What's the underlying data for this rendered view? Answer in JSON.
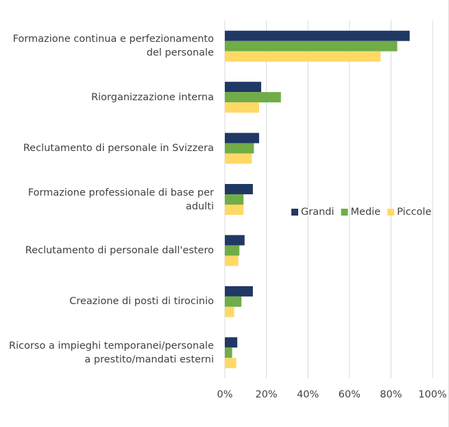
{
  "chart_data": {
    "type": "bar",
    "orientation": "horizontal",
    "categories": [
      "Formazione continua e perfezionamento\ndel personale",
      "Riorganizzazione interna",
      "Reclutamento di personale in Svizzera",
      "Formazione professionale di base per\nadulti",
      "Reclutamento di personale dall'estero",
      "Creazione di posti di tirocinio",
      "Ricorso a impieghi temporanei/personale\na prestito/mandati esterni"
    ],
    "series": [
      {
        "name": "Grandi",
        "color": "#203864",
        "values": [
          89,
          17.5,
          16.5,
          13.5,
          9.5,
          13.5,
          6
        ]
      },
      {
        "name": "Medie",
        "color": "#70ad47",
        "values": [
          83,
          27,
          14,
          9,
          7,
          8,
          3.5
        ]
      },
      {
        "name": "Piccole",
        "color": "#ffd966",
        "values": [
          75,
          16.5,
          13,
          9,
          6.5,
          4.5,
          5.5
        ]
      }
    ],
    "xlim": [
      0,
      100
    ],
    "xticks": [
      {
        "value": 0,
        "label": "0%"
      },
      {
        "value": 20,
        "label": "20%"
      },
      {
        "value": 40,
        "label": "40%"
      },
      {
        "value": 60,
        "label": "60%"
      },
      {
        "value": 80,
        "label": "80%"
      },
      {
        "value": 100,
        "label": "100%"
      }
    ],
    "grid": true,
    "legend": "right"
  }
}
